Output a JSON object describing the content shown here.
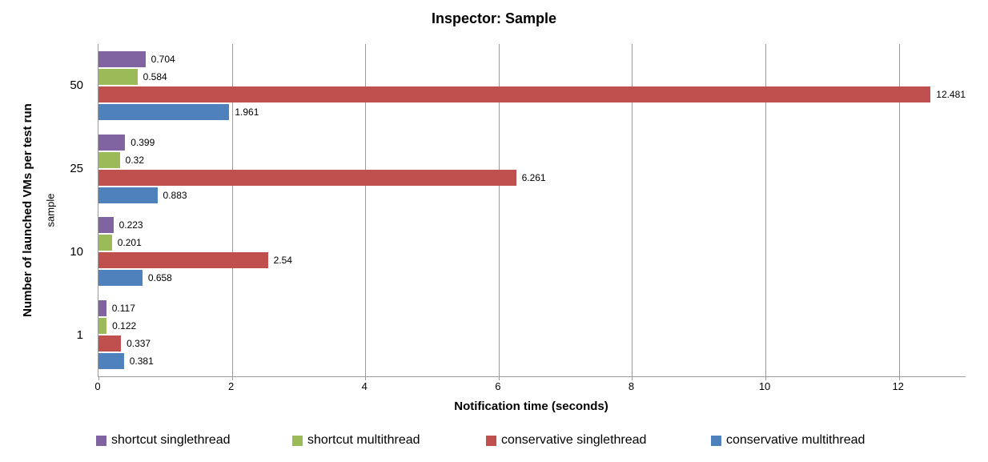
{
  "chart_data": {
    "type": "bar",
    "orientation": "horizontal",
    "title": "Inspector: Sample",
    "xlabel": "Notification time (seconds)",
    "ylabel": "Number of launched VMs per test run",
    "ylabel_secondary": "sample",
    "categories": [
      "50",
      "25",
      "10",
      "1"
    ],
    "series": [
      {
        "name": "shortcut singlethread",
        "color": "#8064A2",
        "values": [
          0.704,
          0.399,
          0.223,
          0.117
        ]
      },
      {
        "name": "shortcut multithread",
        "color": "#9BBB59",
        "values": [
          0.584,
          0.32,
          0.201,
          0.122
        ]
      },
      {
        "name": "conservative singlethread",
        "color": "#C0504D",
        "values": [
          12.481,
          6.261,
          2.54,
          0.337
        ]
      },
      {
        "name": "conservative multithread",
        "color": "#4F81BD",
        "values": [
          1.961,
          0.883,
          0.658,
          0.381
        ]
      }
    ],
    "data_labels": [
      "0.704",
      "0.584",
      "12.481",
      "1.961",
      "0.399",
      "0.32",
      "6.261",
      "0.883",
      "0.223",
      "0.201",
      "2.54",
      "0.658",
      "0.117",
      "0.122",
      "0.337",
      "0.381"
    ],
    "xlim": [
      0,
      13
    ],
    "xticks": [
      0,
      2,
      4,
      6,
      8,
      10,
      12
    ],
    "grid": "vertical",
    "legend_position": "bottom",
    "colors": {
      "gridline": "#9b9b9b",
      "axis": "#9b9b9b",
      "background": "#ffffff",
      "text": "#000000"
    }
  }
}
